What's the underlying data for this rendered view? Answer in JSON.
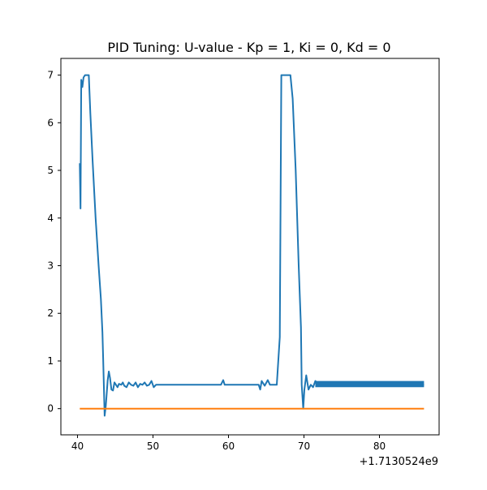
{
  "chart_data": {
    "type": "line",
    "title": "PID Tuning: U-value - Kp = 1, Ki = 0, Kd = 0",
    "xlabel": "",
    "ylabel": "",
    "x_offset_label": "+1.7130524e9",
    "xlim": [
      37.8,
      87.9
    ],
    "ylim": [
      -0.55,
      7.35
    ],
    "x_ticks": [
      40,
      50,
      60,
      70,
      80
    ],
    "y_ticks": [
      0,
      1,
      2,
      3,
      4,
      5,
      6,
      7
    ],
    "grid": false,
    "legend": "none",
    "series": [
      {
        "color": "#1f77b4",
        "points": [
          [
            40.3,
            5.15
          ],
          [
            40.4,
            4.2
          ],
          [
            40.5,
            6.9
          ],
          [
            40.65,
            6.75
          ],
          [
            40.8,
            6.95
          ],
          [
            41.0,
            7.0
          ],
          [
            41.5,
            7.0
          ],
          [
            41.7,
            6.2
          ],
          [
            42.0,
            5.2
          ],
          [
            42.4,
            4.0
          ],
          [
            42.8,
            3.0
          ],
          [
            43.1,
            2.3
          ],
          [
            43.3,
            1.6
          ],
          [
            43.4,
            1.05
          ],
          [
            43.6,
            -0.15
          ],
          [
            43.75,
            0.05
          ],
          [
            44.0,
            0.6
          ],
          [
            44.15,
            0.78
          ],
          [
            44.3,
            0.65
          ],
          [
            44.5,
            0.4
          ],
          [
            44.7,
            0.38
          ],
          [
            44.9,
            0.55
          ],
          [
            45.1,
            0.5
          ],
          [
            45.3,
            0.45
          ],
          [
            45.5,
            0.52
          ],
          [
            45.8,
            0.5
          ],
          [
            46.0,
            0.55
          ],
          [
            46.2,
            0.48
          ],
          [
            46.5,
            0.45
          ],
          [
            46.8,
            0.55
          ],
          [
            47.1,
            0.5
          ],
          [
            47.4,
            0.48
          ],
          [
            47.7,
            0.55
          ],
          [
            48.0,
            0.45
          ],
          [
            48.3,
            0.52
          ],
          [
            48.6,
            0.5
          ],
          [
            48.9,
            0.55
          ],
          [
            49.2,
            0.48
          ],
          [
            49.5,
            0.5
          ],
          [
            49.8,
            0.58
          ],
          [
            50.1,
            0.45
          ],
          [
            50.4,
            0.5
          ],
          [
            50.7,
            0.5
          ],
          [
            51.0,
            0.5
          ],
          [
            55.0,
            0.5
          ],
          [
            59.0,
            0.5
          ],
          [
            59.3,
            0.6
          ],
          [
            59.5,
            0.5
          ],
          [
            63.0,
            0.5
          ],
          [
            64.0,
            0.5
          ],
          [
            64.2,
            0.4
          ],
          [
            64.4,
            0.58
          ],
          [
            64.8,
            0.48
          ],
          [
            65.2,
            0.6
          ],
          [
            65.5,
            0.5
          ],
          [
            66.0,
            0.5
          ],
          [
            66.4,
            0.5
          ],
          [
            66.8,
            1.5
          ],
          [
            67.0,
            7.0
          ],
          [
            67.5,
            7.0
          ],
          [
            68.2,
            7.0
          ],
          [
            68.5,
            6.5
          ],
          [
            68.9,
            5.0
          ],
          [
            69.3,
            3.0
          ],
          [
            69.6,
            1.7
          ],
          [
            69.7,
            0.5
          ],
          [
            69.9,
            0.0
          ],
          [
            70.05,
            0.4
          ],
          [
            70.3,
            0.7
          ],
          [
            70.6,
            0.4
          ],
          [
            70.9,
            0.5
          ],
          [
            71.2,
            0.45
          ],
          [
            71.5,
            0.58
          ],
          [
            72.0,
            0.5
          ],
          [
            73.0,
            0.52
          ],
          [
            74.0,
            0.5
          ],
          [
            76.0,
            0.52
          ],
          [
            78.0,
            0.5
          ],
          [
            80.0,
            0.53
          ],
          [
            82.0,
            0.55
          ],
          [
            84.0,
            0.52
          ],
          [
            85.9,
            0.5
          ]
        ]
      },
      {
        "color": "#ff7f0e",
        "points": [
          [
            40.3,
            0.0
          ],
          [
            85.9,
            0.0
          ]
        ]
      }
    ]
  }
}
